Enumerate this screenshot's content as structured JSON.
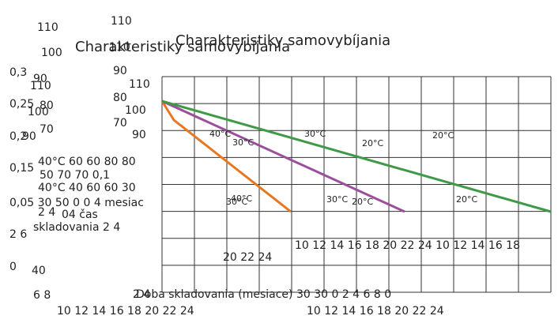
{
  "texts": [
    "110",
    "110",
    "100",
    "Charakteristiky samovybíjania",
    "Charakteristiky samovybíjania",
    "110",
    "0,3",
    "90",
    "90",
    "110",
    "110",
    "80",
    "0,25",
    "80",
    "100",
    "100",
    "70",
    "70",
    "90",
    "0,2",
    "90",
    "40°C 60 60 80 80",
    "0,15",
    "50 70 70 0,1",
    "40°C 40 60 60 30",
    "0,05 30 50 0 0 4 mesiac",
    "2 4",
    "04 čas",
    "skladovania 2 4",
    "2 6",
    "0",
    "40",
    "6 8",
    "10 12 14 16 18 20 22 24",
    "2 4",
    "Doba skladovania (mesiace) 30 30 0 2 4 6 8 0",
    "10 12 14 16 18 20 22 24",
    "20 22 24",
    "10 12 14 16 18 20 22 24 10 12 14 16 18"
  ],
  "curve_labels": [
    "40°C",
    "30°C",
    "30°C",
    "20°C",
    "20°C",
    "40°C",
    "30°C",
    "30°C",
    "20°C",
    "20°C"
  ]
}
